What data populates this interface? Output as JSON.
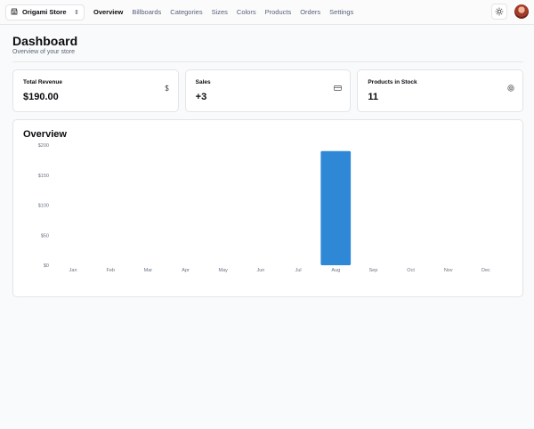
{
  "header": {
    "store": {
      "name": "Origami Store",
      "icon": "store-icon"
    },
    "nav": [
      {
        "label": "Overview",
        "active": true
      },
      {
        "label": "Billboards",
        "active": false
      },
      {
        "label": "Categories",
        "active": false
      },
      {
        "label": "Sizes",
        "active": false
      },
      {
        "label": "Colors",
        "active": false
      },
      {
        "label": "Products",
        "active": false
      },
      {
        "label": "Orders",
        "active": false
      },
      {
        "label": "Settings",
        "active": false
      }
    ]
  },
  "page": {
    "title": "Dashboard",
    "subtitle": "Overview of your store"
  },
  "cards": [
    {
      "label": "Total Revenue",
      "value": "$190.00",
      "icon": "dollar-icon"
    },
    {
      "label": "Sales",
      "value": "+3",
      "icon": "credit-card-icon"
    },
    {
      "label": "Products in Stock",
      "value": "11",
      "icon": "package-icon"
    }
  ],
  "overview": {
    "title": "Overview"
  },
  "chart_data": {
    "type": "bar",
    "categories": [
      "Jan",
      "Feb",
      "Mar",
      "Apr",
      "May",
      "Jun",
      "Jul",
      "Aug",
      "Sep",
      "Oct",
      "Nov",
      "Dec"
    ],
    "values": [
      0,
      0,
      0,
      0,
      0,
      0,
      0,
      190,
      0,
      0,
      0,
      0
    ],
    "yticks": [
      "$0",
      "$50",
      "$100",
      "$150",
      "$200"
    ],
    "ylim": [
      0,
      200
    ],
    "grid": false,
    "bar_color": "#2f88d6"
  }
}
